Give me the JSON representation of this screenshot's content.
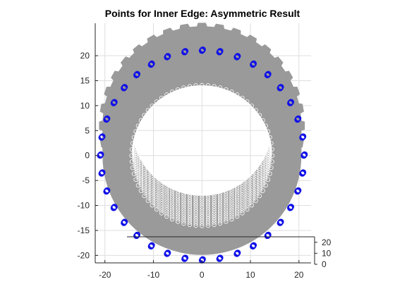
{
  "chart_data": {
    "type": "scatter",
    "title": "Points for Inner Edge: Asymmetric Result",
    "xlabel": "",
    "ylabel": "",
    "xlim": [
      -22,
      22.5
    ],
    "ylim": [
      -21.5,
      26.5
    ],
    "xticks": [
      -20,
      -10,
      0,
      10,
      20
    ],
    "yticks": [
      -20,
      -15,
      -10,
      -5,
      0,
      5,
      10,
      15,
      20
    ],
    "zticks": [
      0,
      10,
      20
    ],
    "grid": true,
    "legend": "none",
    "surface": {
      "description_values": "gray ring of stacked tire cross-section points",
      "center": [
        0,
        0
      ],
      "inner_radius_front": 14.5,
      "outer_radius_front": 20.5,
      "layer_count": 14,
      "layer_y_offset_total": 6,
      "tread_blocks": 36
    },
    "series": [
      {
        "marker": "circle",
        "radius": 21,
        "count": 36,
        "x": [
          21.0,
          20.7,
          19.7,
          18.2,
          16.1,
          13.5,
          10.5,
          7.2,
          3.6,
          0.0,
          -3.6,
          -7.2,
          -10.5,
          -13.5,
          -16.1,
          -18.2,
          -19.7,
          -20.7,
          -21.0,
          -20.7,
          -19.7,
          -18.2,
          -16.1,
          -13.5,
          -10.5,
          -7.2,
          -3.6,
          0.0,
          3.6,
          7.2,
          10.5,
          13.5,
          16.1,
          18.2,
          19.7,
          20.7
        ],
        "y": [
          0.0,
          3.6,
          7.2,
          10.5,
          13.5,
          16.1,
          18.2,
          19.7,
          20.7,
          21.0,
          20.7,
          19.7,
          18.2,
          16.1,
          13.5,
          10.5,
          7.2,
          3.6,
          0.0,
          -3.6,
          -7.2,
          -10.5,
          -13.5,
          -16.1,
          -18.2,
          -19.7,
          -20.7,
          -21.0,
          -20.7,
          -19.7,
          -18.2,
          -16.1,
          -13.5,
          -10.5,
          -7.2,
          -3.6
        ]
      }
    ]
  },
  "colors": {
    "surface_fill": "#9a9a9a",
    "surface_edge": "#ffffff",
    "points": "#1010e8",
    "grid": "#dedede",
    "axis": "#262626",
    "background": "#ffffff"
  }
}
